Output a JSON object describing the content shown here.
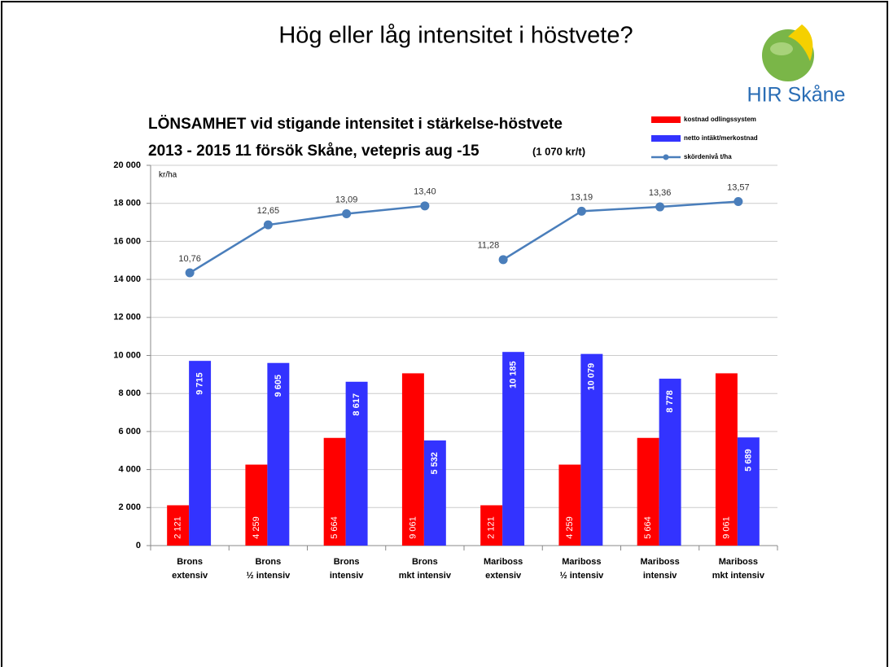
{
  "slide_title": "Hög eller låg intensitet i höstvete?",
  "logo": "HIR Skåne",
  "chart_data": {
    "type": "bar",
    "title": [
      "LÖNSAMHET vid stigande intensitet i stärkelse-höstvete",
      "2013 - 2015   11 försök Skåne, vetepris aug -15"
    ],
    "subtitle": "(1 070 kr/t)",
    "y_label": "kr/ha",
    "categories": [
      [
        "Brons",
        "extensiv"
      ],
      [
        "Brons",
        "½ intensiv"
      ],
      [
        "Brons",
        "intensiv"
      ],
      [
        "Brons",
        "mkt intensiv"
      ],
      [
        "Mariboss",
        "extensiv"
      ],
      [
        "Mariboss",
        "½ intensiv"
      ],
      [
        "Mariboss",
        "intensiv"
      ],
      [
        "Mariboss",
        "mkt intensiv"
      ]
    ],
    "series": [
      {
        "name": "kostnad odlingssystem",
        "color": "#ff0000",
        "values": [
          2121,
          4259,
          5664,
          9061,
          2121,
          4259,
          5664,
          9061
        ],
        "value_labels": [
          "2 121",
          "4 259",
          "5 664",
          "9 061",
          "2 121",
          "4 259",
          "5 664",
          "9 061"
        ]
      },
      {
        "name": "netto intäkt/merkostnad",
        "color": "#3333ff",
        "values": [
          9715,
          9605,
          8617,
          5532,
          10185,
          10079,
          8778,
          5689
        ],
        "value_labels": [
          "9 715",
          "9 605",
          "8 617",
          "5 532",
          "10 185",
          "10 079",
          "8 778",
          "5 689"
        ]
      },
      {
        "name": "skördenivå t/ha",
        "color": "#4a7ebb",
        "type": "line",
        "axis": "y2",
        "values": [
          10.76,
          12.65,
          13.09,
          13.4,
          11.28,
          13.19,
          13.36,
          13.57
        ],
        "breaks_before": [
          4
        ],
        "value_labels": [
          "10,76",
          "12,65",
          "13,09",
          "13,40",
          "11,28",
          "13,19",
          "13,36",
          "13,57"
        ]
      }
    ],
    "ylim": [
      0,
      20000
    ],
    "yticks": [
      {
        "value": 0,
        "label": "0"
      },
      {
        "value": 2000,
        "label": "2 000"
      },
      {
        "value": 4000,
        "label": "4 000"
      },
      {
        "value": 6000,
        "label": "6 000"
      },
      {
        "value": 8000,
        "label": "8 000"
      },
      {
        "value": 10000,
        "label": "10 000"
      },
      {
        "value": 12000,
        "label": "12 000"
      },
      {
        "value": 14000,
        "label": "14 000"
      },
      {
        "value": 16000,
        "label": "16 000"
      },
      {
        "value": 18000,
        "label": "18 000"
      },
      {
        "value": 20000,
        "label": "20 000"
      }
    ],
    "y2lim": [
      0,
      15
    ],
    "grid": true,
    "legend": "top-right"
  }
}
